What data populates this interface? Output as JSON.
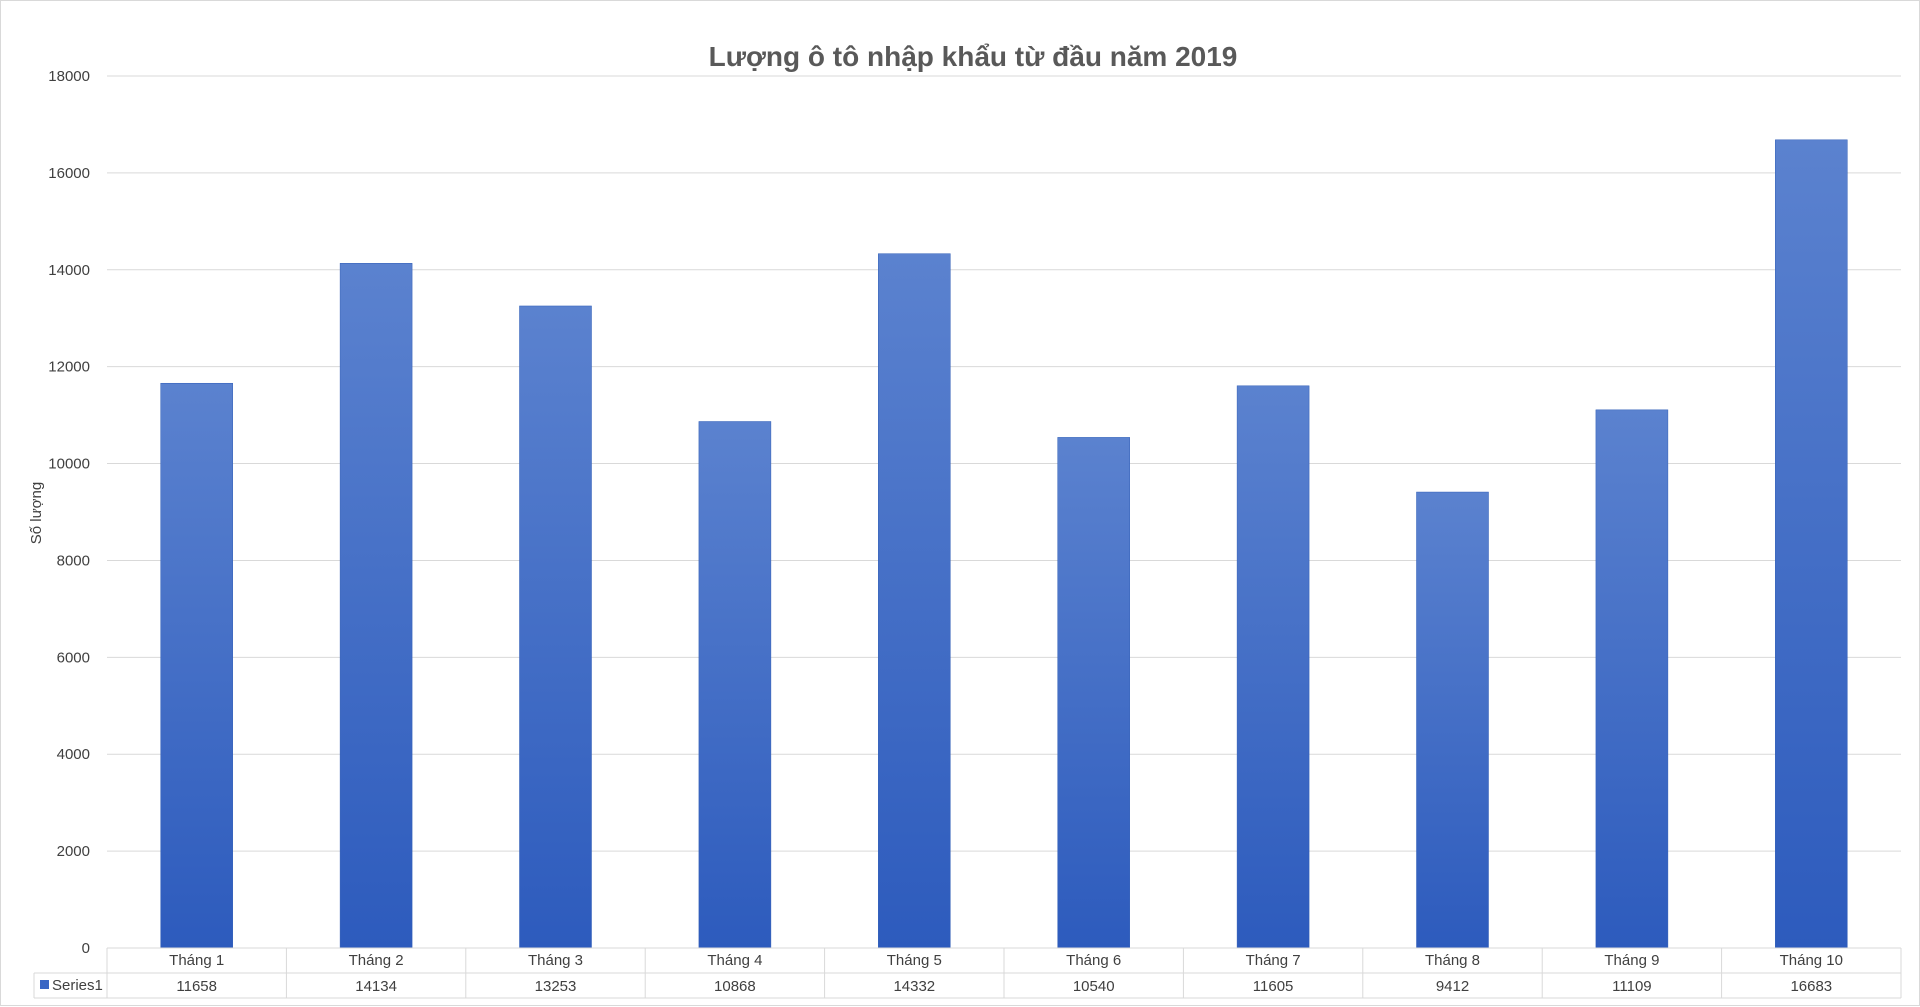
{
  "chart_data": {
    "type": "bar",
    "title": "Lượng ô tô nhập khẩu từ đầu năm 2019",
    "xlabel": "",
    "ylabel": "Số lượng",
    "ylim": [
      0,
      18000
    ],
    "yticks": [
      0,
      2000,
      4000,
      6000,
      8000,
      10000,
      12000,
      14000,
      16000,
      18000
    ],
    "grid": true,
    "categories": [
      "Tháng 1",
      "Tháng 2",
      "Tháng 3",
      "Tháng 4",
      "Tháng 5",
      "Tháng 6",
      "Tháng 7",
      "Tháng 8",
      "Tháng 9",
      "Tháng 10"
    ],
    "series": [
      {
        "name": "Series1",
        "values": [
          11658,
          14134,
          13253,
          10868,
          14332,
          10540,
          11605,
          9412,
          11109,
          16683
        ]
      }
    ],
    "data_table": true,
    "colors": {
      "bar_top": "#5b82cf",
      "bar_bottom": "#2d5bbd",
      "legend_key": "#3a66c4"
    }
  }
}
